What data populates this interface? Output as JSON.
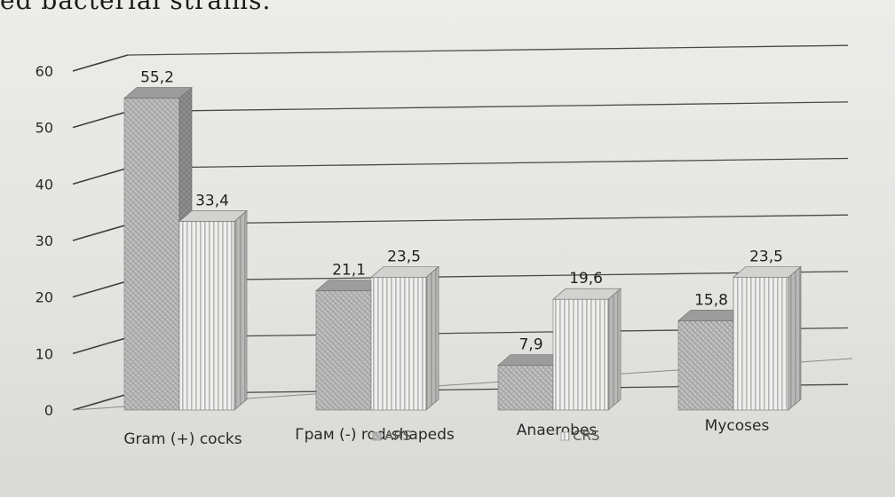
{
  "heading_text": "ed bacterial strains.",
  "chart_data": {
    "type": "bar",
    "categories": [
      "Gram (+) cocks",
      "Грам (-) rod-shapeds",
      "Anaerobes",
      "Mycoses"
    ],
    "series": [
      {
        "name": "ARS",
        "values": [
          55.2,
          21.1,
          7.9,
          15.8
        ],
        "labels": [
          "55,2",
          "21,1",
          "7,9",
          "15,8"
        ]
      },
      {
        "name": "CRS",
        "values": [
          33.4,
          23.5,
          19.6,
          23.5
        ],
        "labels": [
          "33,4",
          "23,5",
          "19,6",
          "23,5"
        ]
      }
    ],
    "y_ticks": [
      "0",
      "10",
      "20",
      "30",
      "40",
      "50",
      "60"
    ],
    "ylim": [
      0,
      60
    ],
    "grid": true,
    "legend_position": "bottom",
    "colors": {
      "ARS": "#b9b9b9",
      "CRS": "#e6e6e6"
    }
  }
}
